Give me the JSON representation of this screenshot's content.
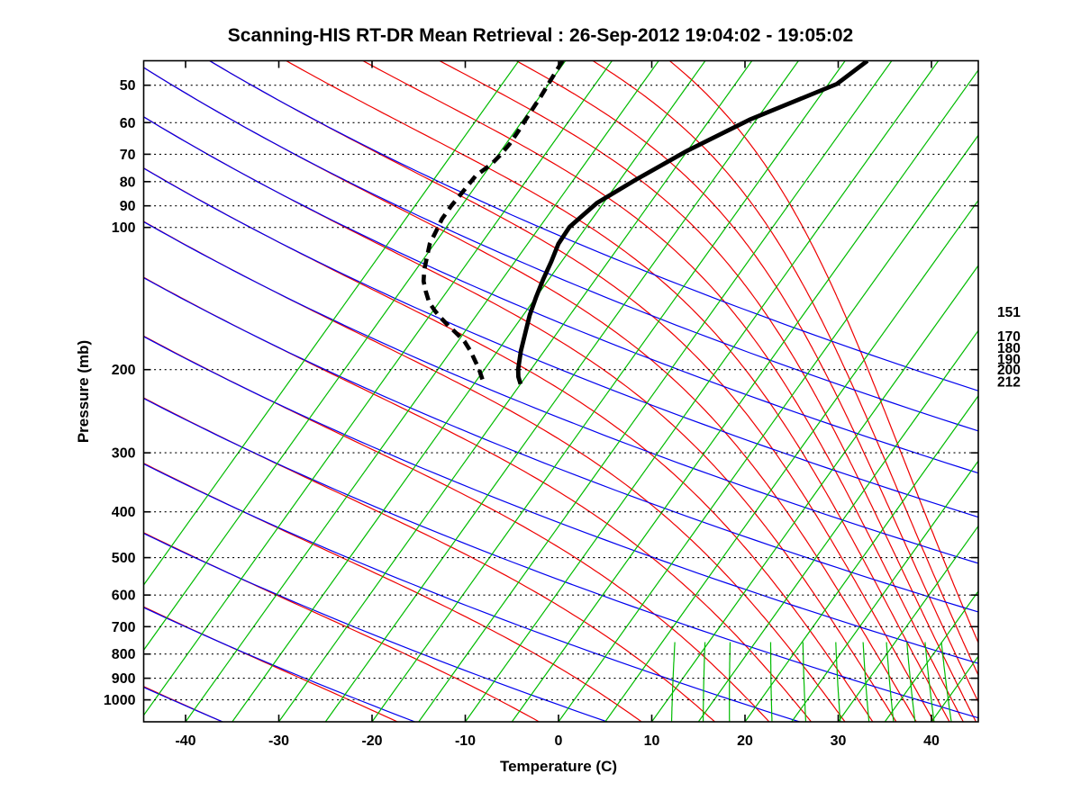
{
  "chart_data": {
    "type": "skewt_logp",
    "title": "Scanning-HIS RT-DR Mean Retrieval : 26-Sep-2012 19:04:02 - 19:05:02",
    "xlabel": "Temperature (C)",
    "ylabel": "Pressure (mb)",
    "x_ticks_c": [
      -40,
      -30,
      -20,
      -10,
      0,
      10,
      20,
      30,
      40
    ],
    "pressure_ticks_mb": [
      50,
      60,
      70,
      80,
      90,
      100,
      200,
      300,
      400,
      500,
      600,
      700,
      800,
      900,
      1000
    ],
    "x_range_c": [
      -44.5,
      45.0
    ],
    "p_range_mb": [
      44.4,
      1113
    ],
    "grid": "dotted horizontal isobars at labeled pressures, ticks mirrored on all four box edges",
    "legend_position": "none",
    "colors": {
      "isotherm": "#00BB00",
      "dry_adiabat": "#0000EE",
      "moist_adiabat": "#EE0000",
      "mixing_ratio": "#00BB00",
      "profile": "#000000",
      "grid": "#000000"
    },
    "isotherms_c": [
      -55,
      -50,
      -45,
      -40,
      -35,
      -30,
      -25,
      -20,
      -15,
      -10,
      -5,
      0,
      5,
      10,
      15,
      20,
      25,
      30,
      35,
      40,
      45
    ],
    "dry_adiabats_theta_K": [
      190,
      210,
      230,
      250,
      270,
      290,
      310,
      330,
      350,
      370,
      390,
      410,
      430,
      450
    ],
    "moist_adiabats_thetae_K": [
      190,
      210,
      230,
      250,
      270,
      290,
      310,
      330,
      350,
      370,
      390,
      410,
      430,
      450,
      470,
      490,
      510,
      530,
      550,
      570
    ],
    "mixing_ratio_gkg": [
      8,
      10,
      12,
      16,
      20,
      25,
      30,
      35,
      40,
      45,
      50
    ],
    "mixing_ratio_max_p_extent_mb": 755,
    "right_pressure_labels": [
      {
        "pressure_mb": 151,
        "label": "151"
      },
      {
        "pressure_mb": 170,
        "label": "170"
      },
      {
        "pressure_mb": 180,
        "label": "180"
      },
      {
        "pressure_mb": 190,
        "label": "190"
      },
      {
        "pressure_mb": 200,
        "label": "200"
      },
      {
        "pressure_mb": 212,
        "label": "212"
      }
    ],
    "temperature_profile_p_T": [
      [
        44.4,
        -17.6
      ],
      [
        49.7,
        -19.1
      ],
      [
        59.1,
        -25.7
      ],
      [
        69.0,
        -30.1
      ],
      [
        79.5,
        -33.4
      ],
      [
        88.8,
        -35.7
      ],
      [
        99.8,
        -36.8
      ],
      [
        108.3,
        -36.7
      ],
      [
        118.1,
        -36.1
      ],
      [
        128.9,
        -35.6
      ],
      [
        140.6,
        -35.0
      ],
      [
        153.4,
        -34.3
      ],
      [
        167.4,
        -33.4
      ],
      [
        182.6,
        -32.5
      ],
      [
        199.5,
        -31.4
      ],
      [
        207.0,
        -30.8
      ],
      [
        214.5,
        -30.0
      ]
    ],
    "dewpoint_profile_p_T": [
      [
        44.4,
        -50.3
      ],
      [
        48.8,
        -50.1
      ],
      [
        52.6,
        -49.9
      ],
      [
        57.3,
        -49.8
      ],
      [
        62.3,
        -49.65
      ],
      [
        66.5,
        -49.6
      ],
      [
        70.4,
        -49.75
      ],
      [
        73.5,
        -50.0
      ],
      [
        77.8,
        -50.8
      ],
      [
        81.9,
        -50.9
      ],
      [
        86.3,
        -51.0
      ],
      [
        90.0,
        -51.1
      ],
      [
        95.9,
        -51.1
      ],
      [
        101.5,
        -50.8
      ],
      [
        108.3,
        -50.5
      ],
      [
        115.4,
        -49.8
      ],
      [
        122.9,
        -49.1
      ],
      [
        129.9,
        -48.3
      ],
      [
        136.4,
        -47.3
      ],
      [
        143.9,
        -46.1
      ],
      [
        150.2,
        -44.8
      ],
      [
        155.5,
        -43.6
      ],
      [
        161.5,
        -42.2
      ],
      [
        167.4,
        -40.8
      ],
      [
        174.2,
        -39.3
      ],
      [
        182.6,
        -37.9
      ],
      [
        190.5,
        -36.8
      ],
      [
        199.5,
        -35.6
      ],
      [
        211.0,
        -34.3
      ]
    ]
  }
}
